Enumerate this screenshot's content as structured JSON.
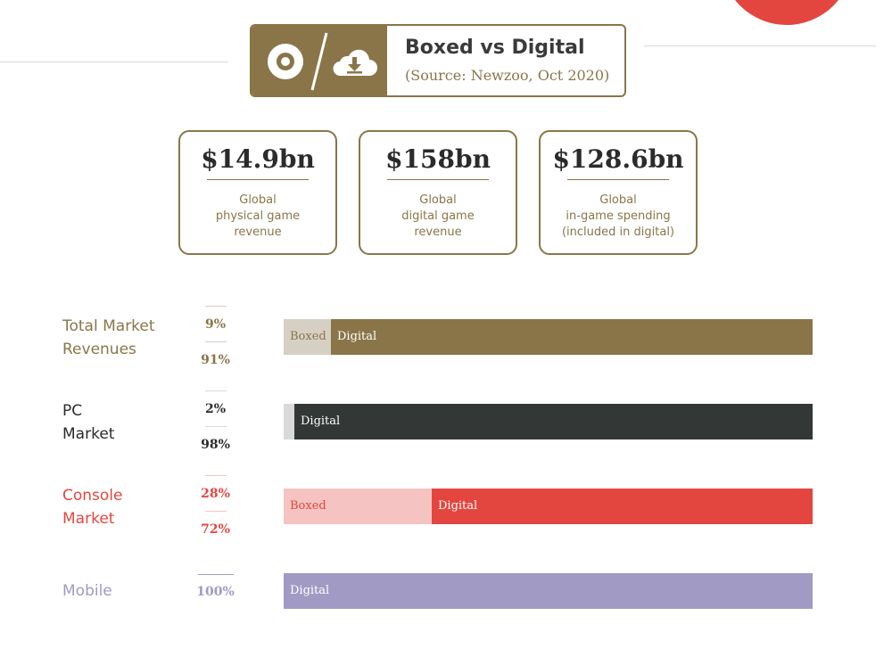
{
  "header": {
    "title": "Boxed vs Digital",
    "source": "(Source: Newzoo, Oct 2020)",
    "icons": [
      "disc-icon",
      "cloud-download-icon"
    ]
  },
  "stats": [
    {
      "value": "$14.9bn",
      "label": "Global\nphysical game\nrevenue"
    },
    {
      "value": "$158bn",
      "label": "Global\ndigital game\nrevenue"
    },
    {
      "value": "$128.6bn",
      "label": "Global\nin-game spending\n(included in digital)"
    }
  ],
  "colors": {
    "gold": "#8a7548",
    "gold_light": "#d6d0c4",
    "dark": "#333735",
    "dark_light": "#d9d9d9",
    "red": "#e3463f",
    "red_light": "#f5c4c2",
    "mobile": "#a09ac4"
  },
  "chart_data": {
    "type": "bar",
    "stacked": true,
    "orientation": "horizontal",
    "categories": [
      "Total Market Revenues",
      "PC Market",
      "Console Market",
      "Mobile"
    ],
    "series": [
      {
        "name": "Boxed",
        "values": [
          9,
          2,
          28,
          0
        ]
      },
      {
        "name": "Digital",
        "values": [
          91,
          98,
          72,
          100
        ]
      }
    ],
    "xlim": [
      0,
      100
    ],
    "rows": [
      {
        "label": "Total Market\nRevenues",
        "boxed_pct": "9%",
        "digital_pct": "91%",
        "boxed_text": "Boxed",
        "digital_text": "Digital",
        "boxed": 9,
        "digital": 91,
        "color": "#8a7548",
        "light": "#d6d0c4",
        "text_color": "#8a7548",
        "boxed_text_color": "#8a7548",
        "digital_text_color": "#ffffff"
      },
      {
        "label": "PC\nMarket",
        "boxed_pct": "2%",
        "digital_pct": "98%",
        "boxed_text": "",
        "digital_text": "Digital",
        "boxed": 2,
        "digital": 98,
        "color": "#333735",
        "light": "#d9d9d9",
        "text_color": "#2b2b2b",
        "boxed_text_color": "#8a7548",
        "digital_text_color": "#ffffff"
      },
      {
        "label": "Console\nMarket",
        "boxed_pct": "28%",
        "digital_pct": "72%",
        "boxed_text": "Boxed",
        "digital_text": "Digital",
        "boxed": 28,
        "digital": 72,
        "color": "#e3463f",
        "light": "#f5c4c2",
        "text_color": "#e3463f",
        "boxed_text_color": "#e3463f",
        "digital_text_color": "#ffffff"
      },
      {
        "label": "Mobile",
        "boxed_pct": "",
        "digital_pct": "100%",
        "boxed_text": "",
        "digital_text": "Digital",
        "boxed": 0,
        "digital": 100,
        "color": "#a09ac4",
        "light": "#a09ac4",
        "text_color": "#a09ac4",
        "boxed_text_color": "#a09ac4",
        "digital_text_color": "#ffffff"
      }
    ]
  }
}
